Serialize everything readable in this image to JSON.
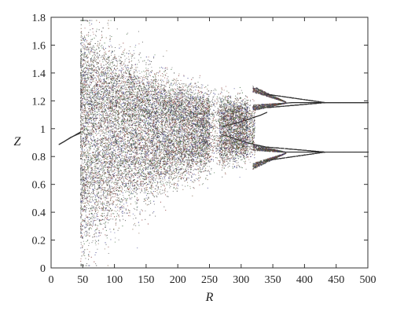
{
  "chart_data": {
    "type": "scatter",
    "title": "",
    "xlabel": "R",
    "ylabel": "Z",
    "xlim": [
      0,
      500
    ],
    "ylim": [
      0,
      1.8
    ],
    "grid": false,
    "legend": "none",
    "xticks": [
      0,
      50,
      100,
      150,
      200,
      250,
      300,
      350,
      400,
      450,
      500
    ],
    "xtick_labels": [
      "0",
      "50",
      "100",
      "150",
      "200",
      "250",
      "300",
      "350",
      "400",
      "450",
      "500"
    ],
    "yticks": [
      0,
      0.2,
      0.4,
      0.6,
      0.8,
      1,
      1.2,
      1.4,
      1.6,
      1.8
    ],
    "ytick_labels": [
      "0",
      "0.2",
      "0.4",
      "0.6",
      "0.8",
      "1",
      "1.2",
      "1.4",
      "1.6",
      "1.8"
    ],
    "point_colors": [
      "#333333",
      "#4d4d4d",
      "#8a3b3b",
      "#3b6a3b",
      "#3b3b8a",
      "#666666",
      "#7a5a3a"
    ],
    "series": [
      {
        "x": [
          12,
          20,
          30,
          40,
          45,
          46
        ],
        "y": [
          0.89,
          0.91,
          0.94,
          0.96,
          0.97,
          0.98
        ]
      },
      {
        "x": [
          365,
          380,
          400,
          420,
          440,
          460,
          480,
          500
        ],
        "y": [
          1.185,
          1.19,
          1.19,
          1.19,
          1.19,
          1.19,
          1.19,
          1.19
        ]
      },
      {
        "x": [
          365,
          380,
          400,
          420,
          440,
          460,
          480,
          500
        ],
        "y": [
          0.835,
          0.835,
          0.835,
          0.835,
          0.835,
          0.835,
          0.835,
          0.835
        ]
      },
      {
        "x": [
          270,
          290,
          310,
          330,
          340
        ],
        "y": [
          1.02,
          1.04,
          1.07,
          1.1,
          1.12
        ]
      },
      {
        "x": [
          270,
          290,
          310,
          330,
          340
        ],
        "y": [
          0.96,
          0.93,
          0.9,
          0.88,
          0.87
        ]
      }
    ]
  }
}
